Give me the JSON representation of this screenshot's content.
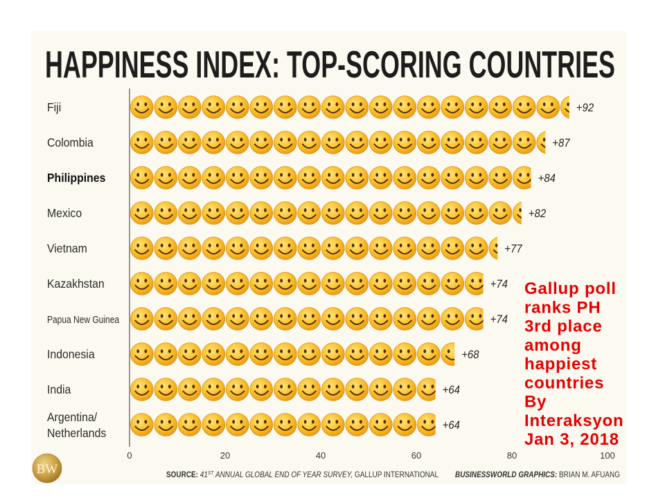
{
  "chart_data": {
    "type": "bar",
    "orientation": "horizontal",
    "icon": "smiley-icon",
    "title": "HAPPINESS INDEX: TOP-SCORING COUNTRIES",
    "categories": [
      "Fiji",
      "Colombia",
      "Philippines",
      "Mexico",
      "Vietnam",
      "Kazakhstan",
      "Papua New Guinea",
      "Indonesia",
      "India",
      "Argentina/Netherlands"
    ],
    "values": [
      92,
      87,
      84,
      82,
      77,
      74,
      74,
      68,
      64,
      64
    ],
    "data_labels": [
      "+92",
      "+87",
      "+84",
      "+82",
      "+77",
      "+74",
      "+74",
      "+68",
      "+64",
      "+64"
    ],
    "highlighted": [
      false,
      false,
      true,
      false,
      false,
      false,
      false,
      false,
      false,
      false
    ],
    "xlim": [
      0,
      100
    ],
    "x_ticks": [
      0,
      20,
      40,
      60,
      80,
      100
    ],
    "grid": false,
    "legend": false
  },
  "annotation": {
    "lines": [
      "Gallup poll",
      "ranks PH",
      "3rd place",
      "among",
      "happiest",
      "countries",
      "By",
      "Interaksyon",
      "Jan 3, 2018"
    ]
  },
  "footer": {
    "source_label": "SOURCE:",
    "source_number": "41",
    "source_superscript": "ST",
    "source_survey": "ANNUAL GLOBAL END OF YEAR SURVEY,",
    "source_org": "GALLUP INTERNATIONAL",
    "credit_label": "BUSINESSWORLD GRAPHICS:",
    "credit_name": "BRIAN M. AFUANG"
  },
  "logo": {
    "text": "BW"
  },
  "colors": {
    "panel": "#fcfaf0",
    "title": "#1d1d1d",
    "annotation": "#e60000",
    "smiley": "#fcc02c",
    "logo": "#c79a3e"
  }
}
